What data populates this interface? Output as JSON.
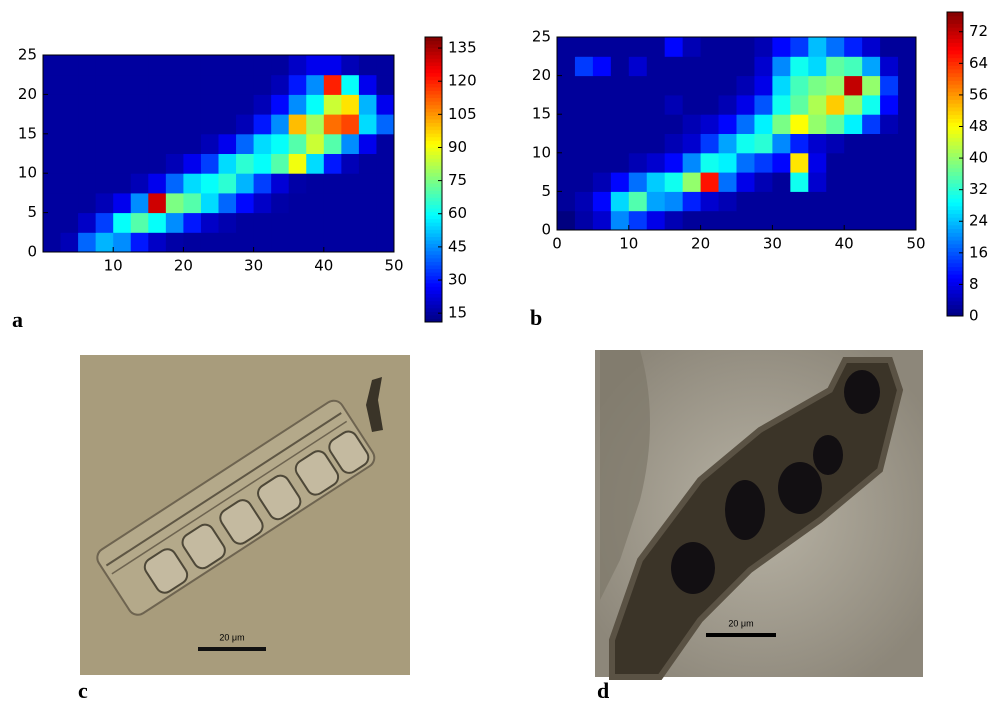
{
  "chart_data": [
    {
      "type": "heatmap",
      "label": "a",
      "colormap": "jet",
      "xbins": [
        0,
        2.5,
        5,
        7.5,
        10,
        12.5,
        15,
        17.5,
        20,
        22.5,
        25,
        27.5,
        30,
        32.5,
        35,
        37.5,
        40,
        42.5,
        45,
        47.5,
        50
      ],
      "ybins": [
        0,
        2.5,
        5,
        7.5,
        10,
        12.5,
        15,
        17.5,
        20,
        22.5,
        25
      ],
      "z": [
        [
          15,
          18,
          40,
          50,
          45,
          30,
          20,
          16,
          15,
          15,
          15,
          15,
          15,
          15,
          15,
          15,
          15,
          15,
          15,
          15
        ],
        [
          15,
          15,
          20,
          35,
          60,
          70,
          60,
          45,
          30,
          20,
          17,
          15,
          15,
          15,
          15,
          15,
          15,
          15,
          15,
          15
        ],
        [
          15,
          15,
          15,
          18,
          25,
          45,
          130,
          75,
          70,
          55,
          40,
          28,
          20,
          16,
          15,
          15,
          15,
          15,
          15,
          15
        ],
        [
          15,
          15,
          15,
          15,
          15,
          18,
          25,
          40,
          55,
          60,
          65,
          50,
          35,
          22,
          16,
          15,
          15,
          15,
          15,
          15
        ],
        [
          15,
          15,
          15,
          15,
          15,
          15,
          15,
          18,
          25,
          35,
          55,
          65,
          60,
          70,
          90,
          55,
          30,
          18,
          15,
          15
        ],
        [
          15,
          15,
          15,
          15,
          15,
          15,
          15,
          15,
          15,
          18,
          25,
          40,
          55,
          60,
          70,
          85,
          70,
          45,
          25,
          15
        ],
        [
          15,
          15,
          15,
          15,
          15,
          15,
          15,
          15,
          15,
          15,
          15,
          18,
          30,
          45,
          100,
          80,
          110,
          115,
          55,
          40
        ],
        [
          15,
          15,
          15,
          15,
          15,
          15,
          15,
          15,
          15,
          15,
          15,
          15,
          18,
          28,
          45,
          60,
          85,
          95,
          50,
          25
        ],
        [
          15,
          15,
          15,
          15,
          15,
          15,
          15,
          15,
          15,
          15,
          15,
          15,
          15,
          18,
          30,
          45,
          120,
          60,
          25,
          15
        ],
        [
          15,
          15,
          15,
          15,
          15,
          15,
          15,
          15,
          15,
          15,
          15,
          15,
          15,
          15,
          20,
          25,
          25,
          18,
          15,
          15
        ]
      ],
      "xlim": [
        0,
        50
      ],
      "ylim": [
        0,
        25
      ],
      "xticks": [
        10,
        20,
        30,
        40,
        50
      ],
      "yticks": [
        0,
        5,
        10,
        15,
        20,
        25
      ],
      "clim": [
        11,
        140
      ],
      "cticks": [
        15,
        30,
        45,
        60,
        75,
        90,
        105,
        120,
        135
      ]
    },
    {
      "type": "heatmap",
      "label": "b",
      "colormap": "jet",
      "xbins": [
        0,
        2.5,
        5,
        7.5,
        10,
        12.5,
        15,
        17.5,
        20,
        22.5,
        25,
        27.5,
        30,
        32.5,
        35,
        37.5,
        40,
        42.5,
        45,
        47.5,
        50
      ],
      "ybins": [
        0,
        2.5,
        5,
        7.5,
        10,
        12.5,
        15,
        17.5,
        20,
        22.5,
        25
      ],
      "z": [
        [
          0,
          3,
          6,
          20,
          14,
          8,
          4,
          2,
          2,
          2,
          2,
          2,
          2,
          2,
          2,
          2,
          2,
          2,
          2,
          2
        ],
        [
          2,
          4,
          10,
          26,
          35,
          22,
          20,
          12,
          6,
          4,
          2,
          2,
          2,
          2,
          2,
          2,
          2,
          2,
          2,
          2
        ],
        [
          2,
          2,
          4,
          10,
          18,
          25,
          30,
          40,
          66,
          18,
          8,
          4,
          2,
          30,
          6,
          2,
          2,
          2,
          2,
          2
        ],
        [
          2,
          2,
          2,
          2,
          4,
          6,
          10,
          20,
          30,
          28,
          18,
          14,
          10,
          50,
          8,
          2,
          2,
          2,
          2,
          2
        ],
        [
          2,
          2,
          2,
          2,
          2,
          2,
          4,
          6,
          14,
          22,
          30,
          32,
          20,
          12,
          6,
          4,
          2,
          2,
          2,
          2
        ],
        [
          2,
          2,
          2,
          2,
          2,
          2,
          2,
          4,
          6,
          10,
          18,
          28,
          38,
          48,
          40,
          36,
          28,
          14,
          4,
          2
        ],
        [
          2,
          2,
          2,
          2,
          2,
          2,
          4,
          2,
          2,
          4,
          8,
          16,
          30,
          36,
          42,
          52,
          40,
          30,
          10,
          2
        ],
        [
          2,
          2,
          2,
          2,
          2,
          2,
          2,
          2,
          2,
          2,
          4,
          8,
          26,
          34,
          38,
          40,
          72,
          40,
          14,
          2
        ],
        [
          2,
          14,
          10,
          2,
          6,
          2,
          2,
          2,
          2,
          2,
          2,
          6,
          20,
          30,
          26,
          36,
          34,
          22,
          6,
          2
        ],
        [
          2,
          2,
          2,
          2,
          2,
          2,
          10,
          4,
          2,
          2,
          2,
          4,
          10,
          14,
          24,
          18,
          12,
          6,
          2,
          2
        ]
      ],
      "xlim": [
        0,
        50
      ],
      "ylim": [
        0,
        25
      ],
      "xticks": [
        0,
        10,
        20,
        30,
        40,
        50
      ],
      "yticks": [
        0,
        5,
        10,
        15,
        20,
        25
      ],
      "clim": [
        0,
        77
      ],
      "cticks": [
        0,
        8,
        16,
        24,
        32,
        40,
        48,
        56,
        64,
        72
      ]
    }
  ],
  "micrographs": [
    {
      "label": "c",
      "scale_bar": "20 μm"
    },
    {
      "label": "d",
      "scale_bar": "20 μm"
    }
  ]
}
